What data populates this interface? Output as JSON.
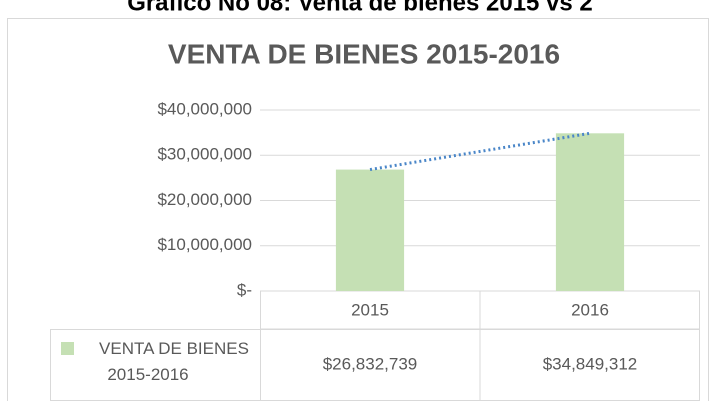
{
  "heading": "Gráfico No 08: Venta de bienes 2015 vs 2",
  "chart_data": {
    "type": "bar",
    "title": "VENTA DE BIENES 2015-2016",
    "categories": [
      "2015",
      "2016"
    ],
    "series": [
      {
        "name": "VENTA DE BIENES 2015-2016",
        "color": "#c5e0b4",
        "values": [
          26832739,
          34849312
        ],
        "value_labels": [
          "$26,832,739",
          "$34,849,312"
        ]
      }
    ],
    "ylim": [
      0,
      40000000
    ],
    "yticks": [
      {
        "value": 0,
        "label": "$-"
      },
      {
        "value": 10000000,
        "label": "$10,000,000"
      },
      {
        "value": 20000000,
        "label": "$20,000,000"
      },
      {
        "value": 30000000,
        "label": "$30,000,000"
      },
      {
        "value": 40000000,
        "label": "$40,000,000"
      }
    ],
    "grid": true,
    "data_table": true,
    "trendline": {
      "style": "dotted",
      "color": "#4a86c8"
    }
  }
}
